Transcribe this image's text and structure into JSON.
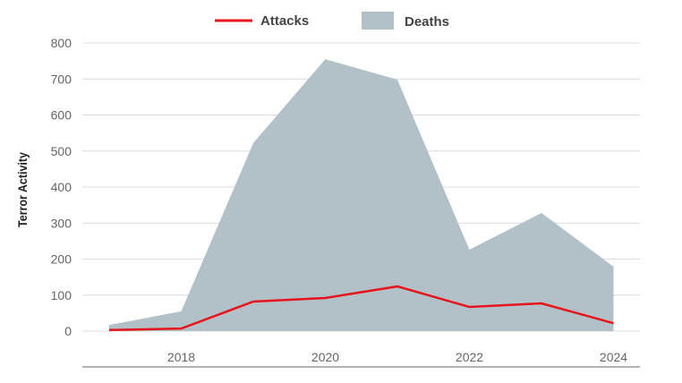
{
  "chart_data": {
    "type": "area",
    "title": "",
    "xlabel": "",
    "ylabel": "Terror Activity",
    "x": [
      2017,
      2018,
      2019,
      2020,
      2021,
      2022,
      2023,
      2024
    ],
    "xticks": [
      "2018",
      "2020",
      "2022",
      "2024"
    ],
    "yticks": [
      "0",
      "100",
      "200",
      "300",
      "400",
      "500",
      "600",
      "700",
      "800"
    ],
    "ylim": [
      0,
      800
    ],
    "grid": true,
    "legend_position": "top-center",
    "series": [
      {
        "name": "Attacks",
        "kind": "line",
        "color": "#e8141c",
        "values": [
          3,
          7,
          82,
          92,
          124,
          67,
          77,
          22
        ]
      },
      {
        "name": "Deaths",
        "kind": "area",
        "color": "#b2c1c7",
        "values": [
          17,
          55,
          522,
          755,
          698,
          226,
          328,
          179
        ]
      }
    ]
  }
}
